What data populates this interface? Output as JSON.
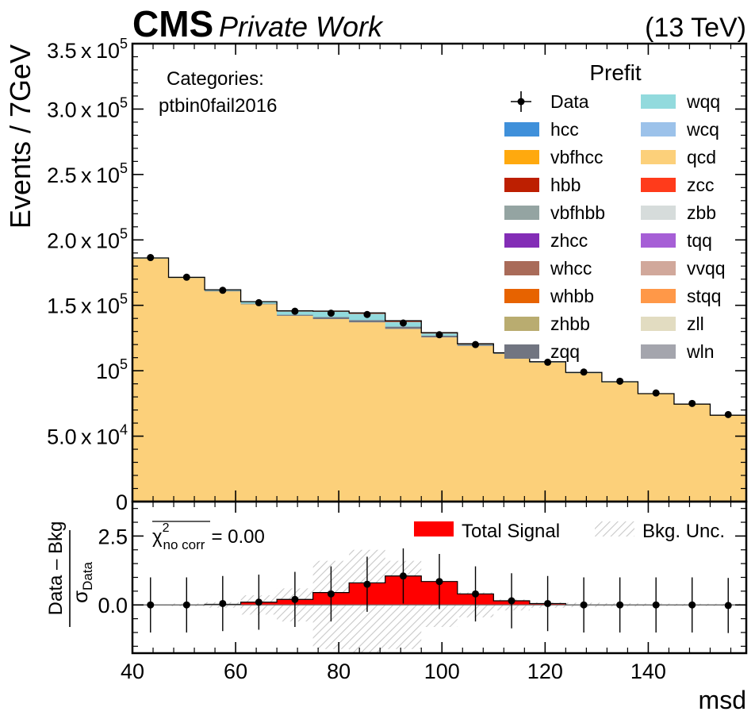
{
  "header": {
    "cms": "CMS",
    "private": "Private Work",
    "energy": "(13 TeV)"
  },
  "categories_label": "Categories:",
  "category": "ptbin0fail2016",
  "legend_title": "Prefit",
  "colors": {
    "data": "#000000",
    "hcc": "#3f90da",
    "vbfhcc": "#ffa90e",
    "hbb": "#bd1f01",
    "vbfhbb": "#94a4a2",
    "zhcc": "#832db6",
    "whcc": "#a96b59",
    "whbb": "#e76300",
    "zhbb": "#b9ac70",
    "zqq": "#717581",
    "wqq": "#92dadd",
    "wcq": "#9cc2ea",
    "qcd": "#fcd07a",
    "zcc": "#ff3b1b",
    "zbb": "#d6dcdb",
    "tqq": "#a65fd6",
    "vvqq": "#d1a89b",
    "stqq": "#ff9848",
    "zll": "#e2dcc1",
    "wln": "#a4a5ad",
    "total_signal": "#ff0000",
    "bkg_unc_hatch": "#c8c8c8"
  },
  "chart_data": [
    {
      "type": "bar",
      "subtype": "stacked-histogram",
      "ylabel": "Events / 7GeV",
      "xlim": [
        40,
        159
      ],
      "ylim": [
        0,
        350000
      ],
      "y_ticks": [
        0,
        50000,
        100000,
        150000,
        200000,
        250000,
        300000,
        350000
      ],
      "y_tick_labels": [
        {
          "mant": "0",
          "exp": ""
        },
        {
          "mant": "5.0 x 10",
          "exp": "4"
        },
        {
          "mant": "10",
          "exp": "5"
        },
        {
          "mant": "1.5 x 10",
          "exp": "5"
        },
        {
          "mant": "2.0 x 10",
          "exp": "5"
        },
        {
          "mant": "2.5 x 10",
          "exp": "5"
        },
        {
          "mant": "3.0 x 10",
          "exp": "5"
        },
        {
          "mant": "3.5 x 10",
          "exp": "5"
        }
      ],
      "bin_edges": [
        40,
        47,
        54,
        61,
        68,
        75,
        82,
        89,
        96,
        103,
        110,
        117,
        124,
        131,
        138,
        145,
        152,
        159
      ],
      "legend_entries": [
        "Data",
        "hcc",
        "vbfhcc",
        "hbb",
        "vbfhbb",
        "zhcc",
        "whcc",
        "whbb",
        "zhbb",
        "zqq",
        "wqq",
        "wcq",
        "qcd",
        "zcc",
        "zbb",
        "tqq",
        "vvqq",
        "stqq",
        "zll",
        "wln"
      ],
      "series": [
        {
          "name": "qcd",
          "values": [
            186000,
            171000,
            161000,
            151000,
            142000,
            139500,
            137000,
            132000,
            125500,
            119000,
            113000,
            106500,
            98500,
            91500,
            82500,
            74500,
            66000
          ]
        },
        {
          "name": "zqq",
          "values": [
            0,
            0,
            100,
            300,
            800,
            1500,
            1700,
            1700,
            1300,
            800,
            400,
            200,
            100,
            0,
            0,
            0,
            0
          ]
        },
        {
          "name": "wqq",
          "values": [
            200,
            400,
            800,
            1500,
            2800,
            4200,
            4800,
            3600,
            1700,
            600,
            300,
            200,
            100,
            100,
            0,
            0,
            0
          ]
        },
        {
          "name": "hbb",
          "values": [
            0,
            0,
            0,
            0,
            200,
            400,
            700,
            900,
            600,
            200,
            0,
            0,
            0,
            0,
            0,
            0,
            0
          ]
        }
      ],
      "data_points": {
        "name": "Data",
        "x": [
          43.5,
          50.5,
          57.5,
          64.5,
          71.5,
          78.5,
          85.5,
          92.5,
          99.5,
          106.5,
          113.5,
          120.5,
          127.5,
          134.5,
          141.5,
          148.5,
          155.5
        ],
        "y": [
          186500,
          171500,
          161500,
          152000,
          145500,
          144000,
          143000,
          136500,
          127500,
          120000,
          113500,
          106500,
          99000,
          92000,
          83000,
          75000,
          66500
        ]
      }
    },
    {
      "type": "bar",
      "subtype": "pull-plot",
      "ylabel_num": "Data – Bkg",
      "ylabel_den": "σ",
      "ylabel_den_sub": "Data",
      "xlabel": "msd",
      "xlim": [
        40,
        159
      ],
      "ylim": [
        -1.75,
        3.75
      ],
      "y_ticks": [
        0,
        2.5
      ],
      "y_tick_labels": [
        "0.0",
        "2.5"
      ],
      "x_ticks": [
        40,
        60,
        80,
        100,
        120,
        140
      ],
      "x_tick_labels": [
        "40",
        "60",
        "80",
        "100",
        "120",
        "140"
      ],
      "chi2": {
        "symbol": "χ",
        "sup": "2",
        "sub": "no corr",
        "value": "= 0.00"
      },
      "legend": {
        "signal": "Total Signal",
        "unc": "Bkg. Unc."
      },
      "bin_edges": [
        40,
        47,
        54,
        61,
        68,
        75,
        82,
        89,
        96,
        103,
        110,
        117,
        124,
        131,
        138,
        145,
        152,
        159
      ],
      "total_signal": [
        0.0,
        0.0,
        0.02,
        0.1,
        0.2,
        0.45,
        0.8,
        1.05,
        0.85,
        0.4,
        0.15,
        0.05,
        0.0,
        0.0,
        0.0,
        0.0,
        0.0
      ],
      "bkg_unc": [
        0.02,
        0.05,
        0.1,
        0.35,
        0.6,
        1.6,
        2.0,
        1.6,
        0.8,
        0.45,
        0.2,
        0.1,
        0.08,
        0.06,
        0.05,
        0.04,
        0.04
      ],
      "pulls": {
        "x": [
          43.5,
          50.5,
          57.5,
          64.5,
          71.5,
          78.5,
          85.5,
          92.5,
          99.5,
          106.5,
          113.5,
          120.5,
          127.5,
          134.5,
          141.5,
          148.5,
          155.5
        ],
        "y": [
          0.0,
          0.0,
          0.05,
          0.1,
          0.2,
          0.4,
          0.75,
          1.05,
          0.85,
          0.4,
          0.15,
          0.05,
          0.0,
          0.0,
          0.0,
          0.0,
          -0.02
        ],
        "err": [
          1.0,
          1.0,
          1.0,
          1.0,
          1.0,
          1.0,
          1.0,
          1.0,
          1.0,
          1.0,
          1.0,
          1.0,
          1.0,
          1.0,
          1.0,
          1.0,
          1.0
        ]
      }
    }
  ]
}
